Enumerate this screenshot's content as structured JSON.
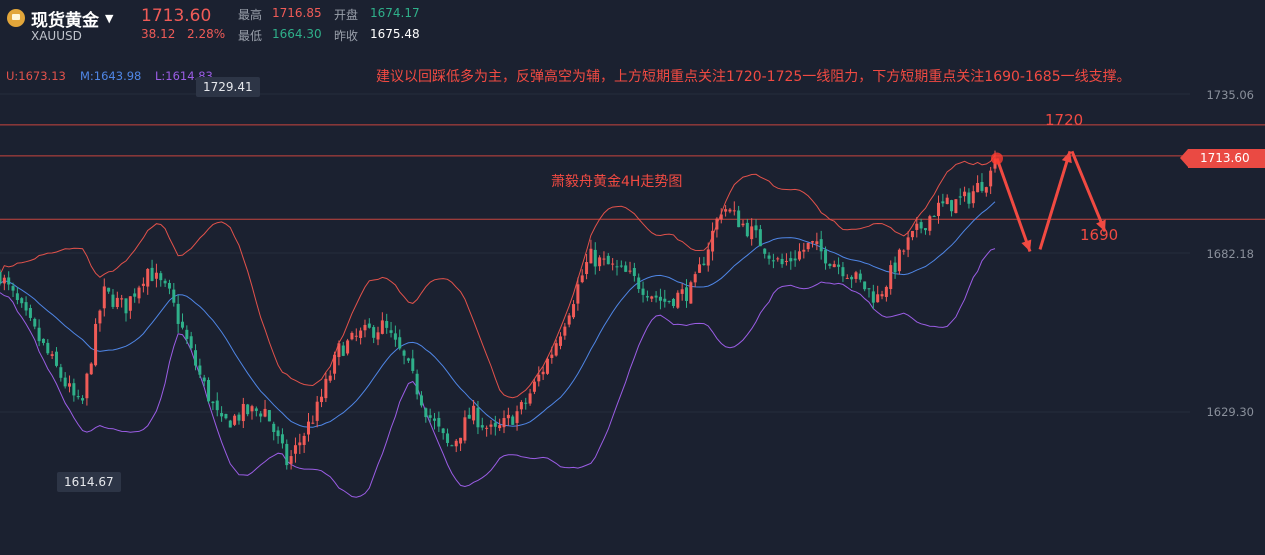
{
  "header": {
    "name": "现货黄金",
    "symbol": "XAUUSD",
    "price": "1713.60",
    "change": "38.12",
    "change_pct": "2.28%",
    "high_label": "最高",
    "high": "1716.85",
    "low_label": "最低",
    "low": "1664.30",
    "open_label": "开盘",
    "open": "1674.17",
    "prev_label": "昨收",
    "prev": "1675.48"
  },
  "indicators": {
    "upper": "U:1673.13",
    "middle": "M:1643.98",
    "lower": "L:1614.83"
  },
  "annotations": {
    "advice": "建议以回踩低多为主，反弹高空为辅，上方短期重点关注1720-1725一线阻力，下方短期重点关注1690-1685一线支撑。",
    "chart_title": "萧毅舟黄金4H走势图",
    "level_high": "1720",
    "level_low": "1690"
  },
  "colors": {
    "background": "#1b2130",
    "up": "#f05b57",
    "down": "#2fb08a",
    "upper_band": "#e2524b",
    "middle_band": "#4f86e6",
    "lower_band": "#9b5de5",
    "annotation": "#f14a42"
  },
  "chart_data": {
    "type": "candlestick",
    "title": "萧毅舟黄金4H走势图",
    "ylim": [
      1599,
      1749
    ],
    "yticks": [
      "1735.06",
      "1682.18",
      "1629.30"
    ],
    "current_price_tag": "1713.60",
    "marked_high": "1729.41",
    "marked_low": "1614.67",
    "horizontal_levels": [
      1724.8,
      1714.5,
      1693.4
    ],
    "trend": [
      [
        1655,
        1675
      ],
      [
        1666,
        1630
      ],
      [
        1669,
        1669
      ],
      [
        1672,
        1664
      ],
      [
        1675,
        1677
      ],
      [
        1678,
        1668
      ],
      [
        1682,
        1642
      ],
      [
        1685,
        1625
      ],
      [
        1688,
        1629
      ],
      [
        1691,
        1630
      ],
      [
        1694,
        1612
      ],
      [
        1698,
        1630
      ],
      [
        1701,
        1650
      ],
      [
        1704,
        1655
      ],
      [
        1707,
        1658
      ],
      [
        1710,
        1646
      ],
      [
        1713,
        1629
      ],
      [
        1716,
        1617
      ],
      [
        1719,
        1629
      ],
      [
        1722,
        1622
      ],
      [
        1726,
        1631
      ],
      [
        1730,
        1650
      ],
      [
        1735,
        1681
      ],
      [
        1740,
        1675
      ],
      [
        1745,
        1666
      ],
      [
        1749,
        1670
      ],
      [
        1753,
        1698
      ],
      [
        1757,
        1689
      ],
      [
        1761,
        1678
      ],
      [
        1765,
        1685
      ],
      [
        1770,
        1676
      ],
      [
        1774,
        1667
      ],
      [
        1778,
        1685
      ],
      [
        1782,
        1697
      ],
      [
        1786,
        1700
      ],
      [
        1790,
        1710
      ]
    ]
  }
}
